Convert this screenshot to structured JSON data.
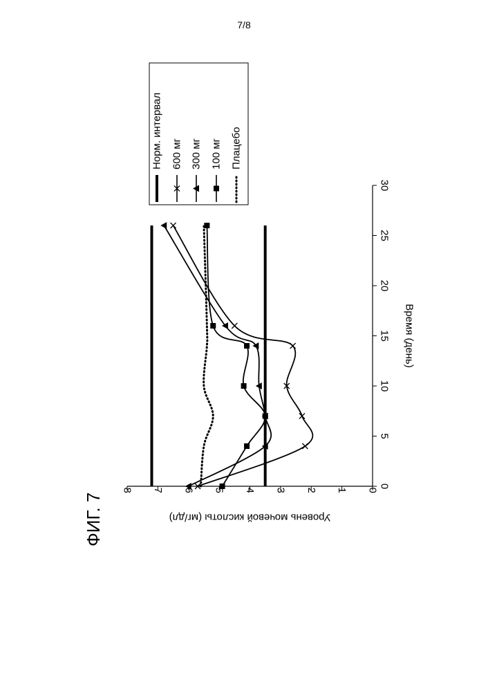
{
  "page_number": "7/8",
  "figure_label": "ФИГ. 7",
  "chart_data": {
    "type": "line",
    "title": "",
    "xlabel": "Время (день)",
    "ylabel": "Уровень мочевой кислоты (мг/дл)",
    "xlim": [
      0,
      30
    ],
    "ylim": [
      0,
      8
    ],
    "x_ticks": [
      "0",
      "5",
      "10",
      "15",
      "20",
      "25",
      "30"
    ],
    "y_ticks": [
      "0",
      "1",
      "2",
      "3",
      "4",
      "5",
      "6",
      "7",
      "8"
    ],
    "grid": false,
    "legend_position": "top-right",
    "series": [
      {
        "name": "Плацебо",
        "style": "dotted",
        "marker": "none",
        "points": [
          [
            0,
            5.6
          ],
          [
            4,
            5.5
          ],
          [
            7,
            5.2
          ],
          [
            10,
            5.5
          ],
          [
            14,
            5.4
          ],
          [
            16,
            5.4
          ],
          [
            26,
            5.5
          ]
        ]
      },
      {
        "name": "100 мг",
        "style": "solid",
        "marker": "square",
        "points": [
          [
            0,
            4.9
          ],
          [
            4,
            4.1
          ],
          [
            7,
            3.5
          ],
          [
            10,
            4.2
          ],
          [
            14,
            4.1
          ],
          [
            16,
            5.2
          ],
          [
            26,
            5.4
          ]
        ]
      },
      {
        "name": "300 мг",
        "style": "solid",
        "marker": "triangle",
        "points": [
          [
            0,
            6.0
          ],
          [
            4,
            3.5
          ],
          [
            7,
            3.5
          ],
          [
            10,
            3.7
          ],
          [
            14,
            3.8
          ],
          [
            16,
            4.8
          ],
          [
            26,
            6.8
          ]
        ]
      },
      {
        "name": "600 мг",
        "style": "solid",
        "marker": "x",
        "points": [
          [
            0,
            5.7
          ],
          [
            4,
            2.2
          ],
          [
            7,
            2.3
          ],
          [
            10,
            2.8
          ],
          [
            14,
            2.6
          ],
          [
            16,
            4.5
          ],
          [
            26,
            6.5
          ]
        ]
      },
      {
        "name": "Норм. интервал",
        "style": "thick",
        "marker": "none",
        "points": [
          [
            0,
            3.5
          ],
          [
            26,
            3.5
          ]
        ]
      },
      {
        "name": "",
        "style": "thick",
        "marker": "none",
        "points": [
          [
            0,
            7.2
          ],
          [
            26,
            7.2
          ]
        ]
      }
    ]
  }
}
